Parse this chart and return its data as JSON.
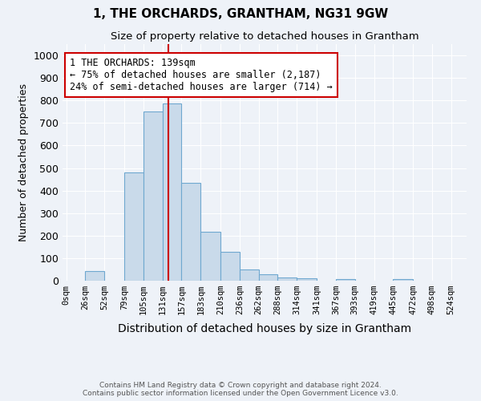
{
  "title": "1, THE ORCHARDS, GRANTHAM, NG31 9GW",
  "subtitle": "Size of property relative to detached houses in Grantham",
  "xlabel": "Distribution of detached houses by size in Grantham",
  "ylabel": "Number of detached properties",
  "footer_line1": "Contains HM Land Registry data © Crown copyright and database right 2024.",
  "footer_line2": "Contains public sector information licensed under the Open Government Licence v3.0.",
  "bar_edges": [
    0,
    26,
    52,
    79,
    105,
    131,
    157,
    183,
    210,
    236,
    262,
    288,
    314,
    341,
    367,
    393,
    419,
    445,
    472,
    498,
    524
  ],
  "bar_heights": [
    0,
    44,
    0,
    480,
    750,
    785,
    435,
    218,
    128,
    50,
    27,
    14,
    10,
    0,
    8,
    0,
    0,
    8,
    0,
    0
  ],
  "bar_color": "#c9daea",
  "bar_edge_color": "#6fa8d0",
  "property_line_x": 139,
  "property_line_color": "#cc0000",
  "annotation_text": "1 THE ORCHARDS: 139sqm\n← 75% of detached houses are smaller (2,187)\n24% of semi-detached houses are larger (714) →",
  "annotation_box_color": "#cc0000",
  "ylim": [
    0,
    1050
  ],
  "yticks": [
    0,
    100,
    200,
    300,
    400,
    500,
    600,
    700,
    800,
    900,
    1000
  ],
  "background_color": "#eef2f8",
  "plot_bg_color": "#eef2f8",
  "grid_color": "#ffffff"
}
